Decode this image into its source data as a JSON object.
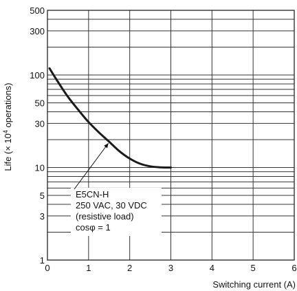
{
  "chart_data": {
    "type": "line",
    "title": "",
    "xlabel": "Switching current (A)",
    "ylabel_main": "Life (",
    "ylabel_times": "×",
    "ylabel_pow": " 10",
    "ylabel_exp": "4",
    "ylabel_rest": " operations)",
    "xlim": [
      0,
      6
    ],
    "ylim": [
      1,
      500
    ],
    "y_scale": "log",
    "grid": true,
    "x_ticks": [
      0,
      1,
      2,
      3,
      4,
      5,
      6
    ],
    "x_tick_labels": [
      "0",
      "1",
      "2",
      "3",
      "4",
      "5",
      "6"
    ],
    "y_ticks": [
      1,
      3,
      5,
      10,
      30,
      50,
      100,
      300,
      500
    ],
    "y_tick_labels": [
      "1",
      "3",
      "5",
      "10",
      "30",
      "50",
      "100",
      "300",
      "500"
    ],
    "series": [
      {
        "x": [
          0.05,
          0.25,
          0.5,
          0.75,
          1.0,
          1.25,
          1.5,
          1.75,
          2.0,
          2.25,
          2.5,
          2.75,
          3.0
        ],
        "y": [
          118,
          85,
          58,
          42,
          31,
          24,
          19,
          15,
          12.5,
          11,
          10.3,
          10.05,
          10
        ]
      }
    ],
    "annotation": {
      "lines": [
        "E5CN-H",
        "250 VAC, 30 VDC",
        "(resistive load)",
        "cosφ = 1"
      ],
      "arrow_target": {
        "x": 1.5,
        "y": 19
      }
    }
  }
}
